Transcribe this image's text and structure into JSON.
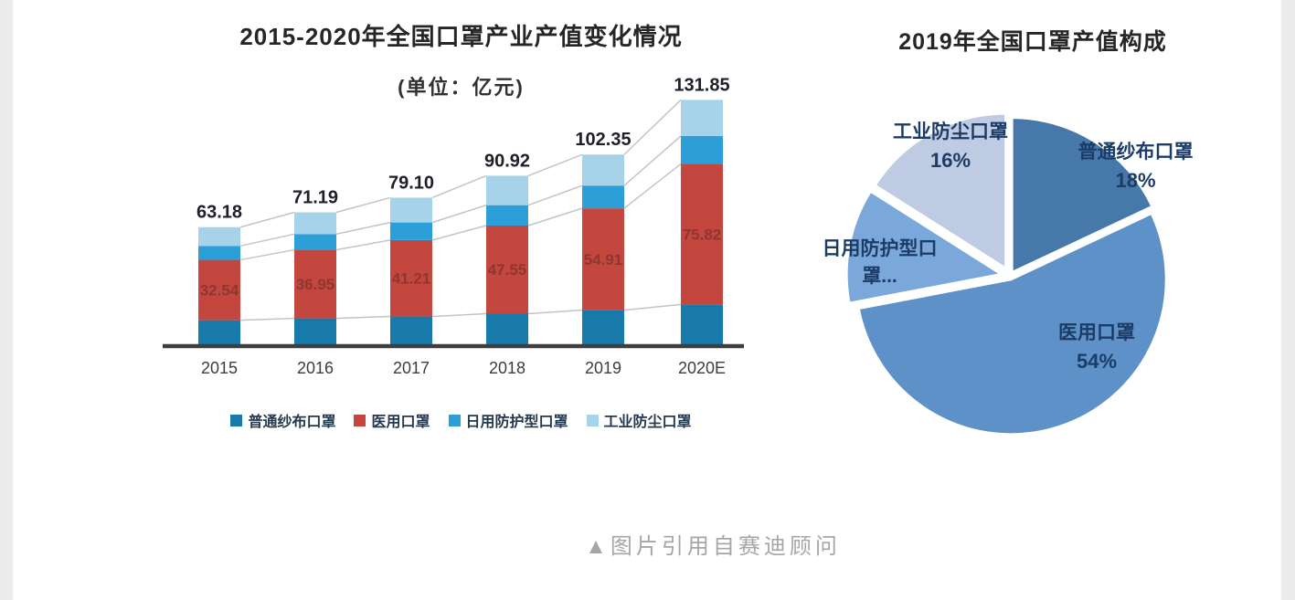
{
  "page": {
    "caption": "▲图片引用自赛迪顾问"
  },
  "chart_data": [
    {
      "type": "bar",
      "stacked": true,
      "title": "2015-2020年全国口罩产业产值变化情况",
      "unit_label": "(单位：亿元)",
      "categories": [
        "2015",
        "2016",
        "2017",
        "2018",
        "2019",
        "2020E"
      ],
      "series": [
        {
          "name": "普通纱布口罩",
          "color": "#1879ab",
          "values": [
            13.0,
            14.0,
            15.0,
            16.5,
            18.42,
            21.5
          ]
        },
        {
          "name": "医用口罩",
          "color": "#c3473f",
          "values": [
            32.54,
            36.95,
            41.21,
            47.55,
            54.91,
            75.82
          ],
          "show_labels": true
        },
        {
          "name": "日用防护型口罩",
          "color": "#2c9fd8",
          "values": [
            7.5,
            8.5,
            9.5,
            11.0,
            12.28,
            15.0
          ]
        },
        {
          "name": "工业防尘口罩",
          "color": "#a6d2ea",
          "values": [
            10.14,
            11.74,
            13.39,
            15.87,
            16.74,
            19.53
          ]
        }
      ],
      "totals": [
        63.18,
        71.19,
        79.1,
        90.92,
        102.35,
        131.85
      ],
      "medical_value_labels": [
        "32.54",
        "36.95",
        "41.21",
        "47.55",
        "54.91",
        "75.82"
      ],
      "ylim": [
        0,
        140
      ],
      "series_lines": true,
      "legend_position": "bottom",
      "axis_color": "#3e3e3e",
      "series_line_color": "#c4c4c4",
      "total_label_color": "#20202a",
      "segment_label_color": "#8e3630",
      "tick_label_color": "#3d3d3d"
    },
    {
      "type": "pie",
      "title": "2019年全国口罩产值构成",
      "start_angle_deg": -90,
      "direction": "clockwise",
      "slices": [
        {
          "name": "普通纱布口罩",
          "pct": 18,
          "color": "#4778aa",
          "label": "普通纱布口罩",
          "pct_label": "18%"
        },
        {
          "name": "医用口罩",
          "pct": 54,
          "color": "#5d91c8",
          "label": "医用口罩",
          "pct_label": "54%"
        },
        {
          "name": "日用防护型口罩",
          "pct": 12,
          "color": "#7ba8da",
          "label": "日用防护型口",
          "label2": "罩...",
          "pct_label": ""
        },
        {
          "name": "工业防尘口罩",
          "pct": 16,
          "color": "#bfcbe2",
          "label": "工业防尘口罩",
          "pct_label": "16%"
        }
      ]
    }
  ]
}
